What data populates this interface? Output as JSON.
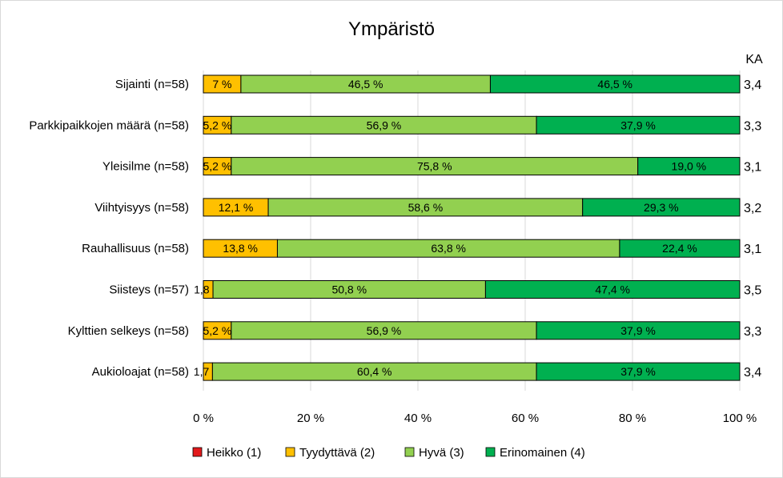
{
  "chart_data": {
    "type": "bar",
    "orientation": "horizontal-stacked-100",
    "title": "Ympäristö",
    "ka_header": "KA",
    "categories": [
      "Sijainti (n=58)",
      "Parkkipaikkojen määrä (n=58)",
      "Yleisilme (n=58)",
      "Viihtyisyys (n=58)",
      "Rauhallisuus (n=58)",
      "Siisteys (n=57)",
      "Kylttien selkeys (n=58)",
      "Aukioloajat (n=58)"
    ],
    "series": [
      {
        "name": "Heikko (1)",
        "color": "#e31a1c",
        "values": [
          0,
          0,
          0,
          0,
          0,
          0,
          0,
          0
        ],
        "labels": [
          "",
          "",
          "",
          "",
          "",
          "",
          "",
          ""
        ]
      },
      {
        "name": "Tyydyttävä (2)",
        "color": "#ffc000",
        "values": [
          7,
          5.2,
          5.2,
          12.1,
          13.8,
          1.8,
          5.2,
          1.7
        ],
        "labels": [
          "7 %",
          "5,2 %",
          "5,2 %",
          "12,1 %",
          "13,8 %",
          "1,8 %",
          "5,2 %",
          "1,7 %"
        ]
      },
      {
        "name": "Hyvä (3)",
        "color": "#92d050",
        "values": [
          46.5,
          56.9,
          75.8,
          58.6,
          63.8,
          50.8,
          56.9,
          60.4
        ],
        "labels": [
          "46,5 %",
          "56,9 %",
          "75,8 %",
          "58,6 %",
          "63,8 %",
          "50,8 %",
          "56,9 %",
          "60,4 %"
        ]
      },
      {
        "name": "Erinomainen (4)",
        "color": "#00b050",
        "values": [
          46.5,
          37.9,
          19.0,
          29.3,
          22.4,
          47.4,
          37.9,
          37.9
        ],
        "labels": [
          "46,5 %",
          "37,9 %",
          "19,0 %",
          "29,3 %",
          "22,4 %",
          "47,4 %",
          "37,9 %",
          "37,9 %"
        ]
      }
    ],
    "ka_values": [
      "3,4",
      "3,3",
      "3,1",
      "3,2",
      "3,1",
      "3,5",
      "3,3",
      "3,4"
    ],
    "x_ticks": [
      "0 %",
      "20 %",
      "40 %",
      "60 %",
      "80 %",
      "100 %"
    ],
    "xlim": [
      0,
      100
    ],
    "legend_position": "bottom"
  }
}
